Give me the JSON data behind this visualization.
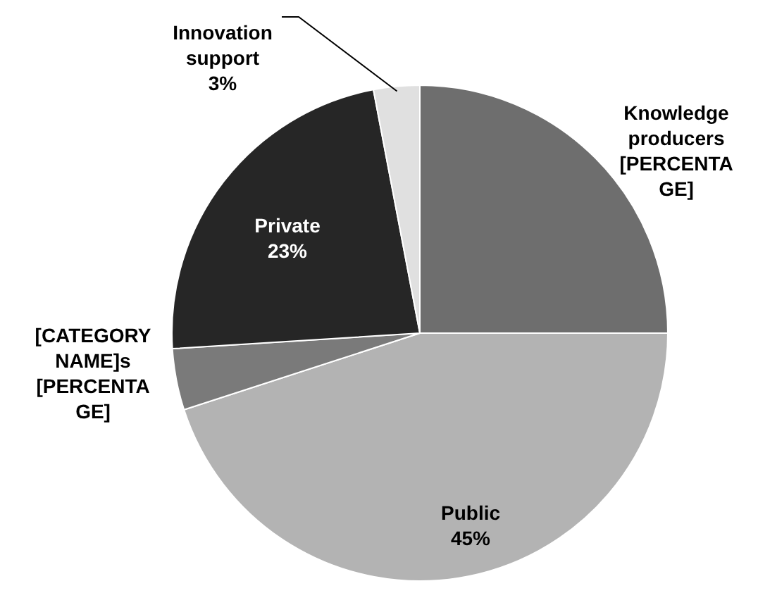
{
  "chart_data": {
    "type": "pie",
    "categories": [
      "Knowledge producers",
      "Public",
      "[CATEGORY NAME]s",
      "Private",
      "Innovation support"
    ],
    "values": [
      25,
      45,
      4,
      23,
      3
    ],
    "value_labels": [
      "[PERCENTAGE]",
      "45%",
      "[PERCENTAGE]",
      "23%",
      "3%"
    ],
    "colors": [
      "#6e6e6e",
      "#b3b3b3",
      "#7a7a7a",
      "#262626",
      "#e0e0e0"
    ]
  }
}
